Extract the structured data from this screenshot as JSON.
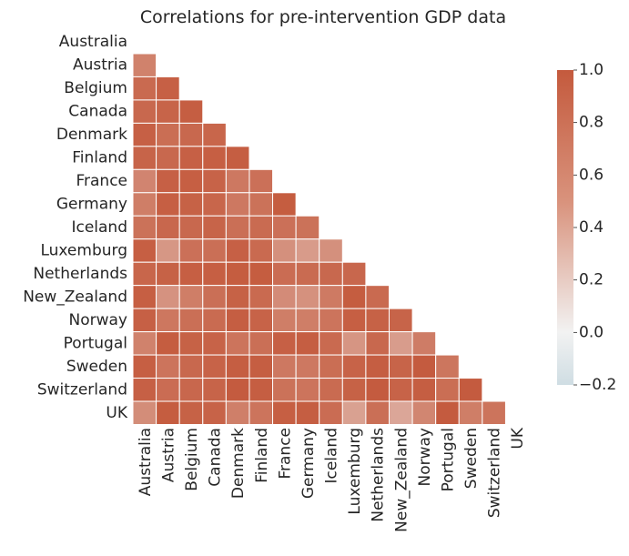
{
  "chart_data": {
    "type": "heatmap",
    "title": "Correlations for pre-intervention GDP data",
    "labels": [
      "Australia",
      "Austria",
      "Belgium",
      "Canada",
      "Denmark",
      "Finland",
      "France",
      "Germany",
      "Iceland",
      "Luxemburg",
      "Netherlands",
      "New_Zealand",
      "Norway",
      "Portugal",
      "Sweden",
      "Switzerland",
      "UK"
    ],
    "mask": "upper-triangle-and-diagonal",
    "colorbar": {
      "min": -0.2,
      "max": 1.0,
      "ticks": [
        "1.0",
        "0.8",
        "0.6",
        "0.4",
        "0.2",
        "0.0",
        "−0.2"
      ]
    },
    "colors": {
      "negative": "#cfdde3",
      "neutral": "#f2f2f2",
      "positive": "#c45a3d"
    },
    "matrix": [
      [],
      [
        0.7
      ],
      [
        0.88,
        0.95
      ],
      [
        0.89,
        0.92,
        0.97
      ],
      [
        0.95,
        0.85,
        0.89,
        0.91
      ],
      [
        0.92,
        0.89,
        0.95,
        0.96,
        0.97
      ],
      [
        0.68,
        0.95,
        0.96,
        0.93,
        0.77,
        0.83
      ],
      [
        0.73,
        0.96,
        0.94,
        0.91,
        0.77,
        0.82,
        0.98
      ],
      [
        0.82,
        0.9,
        0.89,
        0.92,
        0.84,
        0.87,
        0.83,
        0.82
      ],
      [
        0.96,
        0.55,
        0.83,
        0.84,
        0.95,
        0.88,
        0.6,
        0.52,
        0.6
      ],
      [
        0.91,
        0.94,
        0.96,
        0.96,
        0.98,
        0.98,
        0.86,
        0.87,
        0.89,
        0.9
      ],
      [
        0.96,
        0.58,
        0.73,
        0.84,
        0.94,
        0.88,
        0.63,
        0.59,
        0.76,
        0.98,
        0.88
      ],
      [
        0.95,
        0.78,
        0.84,
        0.87,
        0.97,
        0.93,
        0.73,
        0.73,
        0.8,
        0.96,
        0.94,
        0.92
      ],
      [
        0.7,
        0.98,
        0.94,
        0.93,
        0.8,
        0.84,
        0.95,
        0.97,
        0.88,
        0.56,
        0.89,
        0.51,
        0.74
      ],
      [
        0.96,
        0.8,
        0.89,
        0.93,
        0.97,
        0.97,
        0.77,
        0.77,
        0.85,
        0.93,
        0.97,
        0.92,
        0.99,
        0.79
      ],
      [
        0.95,
        0.86,
        0.9,
        0.92,
        0.99,
        0.97,
        0.82,
        0.8,
        0.87,
        0.94,
        0.99,
        0.93,
        0.97,
        0.85,
        0.99
      ],
      [
        0.62,
        0.98,
        0.94,
        0.93,
        0.72,
        0.8,
        0.96,
        0.97,
        0.86,
        0.48,
        0.84,
        0.44,
        0.67,
        0.99,
        0.73,
        0.8
      ]
    ]
  }
}
